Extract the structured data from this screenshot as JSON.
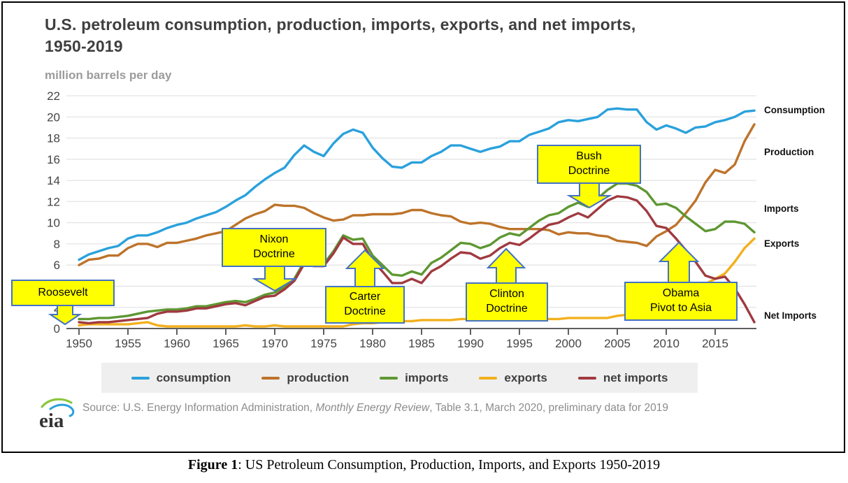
{
  "title": "U.S. petroleum consumption, production, imports, exports, and net imports, 1950-2019",
  "y_axis_unit": "million barrels per day",
  "right_labels": [
    "Consumption",
    "Production",
    "Imports",
    "Exports",
    "Net Imports"
  ],
  "callouts": [
    {
      "name": "roosevelt",
      "line1": "Roosevelt",
      "line2": ""
    },
    {
      "name": "nixon",
      "line1": "Nixon",
      "line2": "Doctrine"
    },
    {
      "name": "carter",
      "line1": "Carter",
      "line2": "Doctrine"
    },
    {
      "name": "clinton",
      "line1": "Clinton",
      "line2": "Doctrine"
    },
    {
      "name": "bush",
      "line1": "Bush",
      "line2": "Doctrine"
    },
    {
      "name": "obama",
      "line1": "Obama",
      "line2": "Pivot to Asia"
    }
  ],
  "legend": [
    {
      "label": "consumption"
    },
    {
      "label": "production"
    },
    {
      "label": "imports"
    },
    {
      "label": "exports"
    },
    {
      "label": "net imports"
    }
  ],
  "logo_text": "eia",
  "source": {
    "prefix": "Source: U.S. Energy Information Administration, ",
    "italic": "Monthly Energy Review",
    "suffix": ", Table 3.1, March 2020, preliminary data for 2019"
  },
  "caption": {
    "label": "Figure 1",
    "text": ": US Petroleum Consumption, Production, Imports, and Exports 1950-2019"
  },
  "chart_data": {
    "type": "line",
    "title": "U.S. petroleum consumption, production, imports, exports, and net imports, 1950-2019",
    "xlabel": "",
    "ylabel": "million barrels per day",
    "ylim": [
      0,
      22
    ],
    "grid": true,
    "legend_position": "bottom",
    "y_ticks": [
      0,
      2,
      4,
      6,
      8,
      10,
      12,
      14,
      16,
      18,
      20,
      22
    ],
    "x_ticks": [
      1950,
      1955,
      1960,
      1965,
      1970,
      1975,
      1980,
      1985,
      1990,
      1995,
      2000,
      2005,
      2010,
      2015
    ],
    "x": [
      1950,
      1951,
      1952,
      1953,
      1954,
      1955,
      1956,
      1957,
      1958,
      1959,
      1960,
      1961,
      1962,
      1963,
      1964,
      1965,
      1966,
      1967,
      1968,
      1969,
      1970,
      1971,
      1972,
      1973,
      1974,
      1975,
      1976,
      1977,
      1978,
      1979,
      1980,
      1981,
      1982,
      1983,
      1984,
      1985,
      1986,
      1987,
      1988,
      1989,
      1990,
      1991,
      1992,
      1993,
      1994,
      1995,
      1996,
      1997,
      1998,
      1999,
      2000,
      2001,
      2002,
      2003,
      2004,
      2005,
      2006,
      2007,
      2008,
      2009,
      2010,
      2011,
      2012,
      2013,
      2014,
      2015,
      2016,
      2017,
      2018,
      2019
    ],
    "series": [
      {
        "name": "consumption",
        "color": "#2aa1dc",
        "values": [
          6.5,
          7.0,
          7.3,
          7.6,
          7.8,
          8.5,
          8.8,
          8.8,
          9.1,
          9.5,
          9.8,
          10.0,
          10.4,
          10.7,
          11.0,
          11.5,
          12.1,
          12.6,
          13.4,
          14.1,
          14.7,
          15.2,
          16.4,
          17.3,
          16.7,
          16.3,
          17.5,
          18.4,
          18.8,
          18.5,
          17.1,
          16.1,
          15.3,
          15.2,
          15.7,
          15.7,
          16.3,
          16.7,
          17.3,
          17.3,
          17.0,
          16.7,
          17.0,
          17.2,
          17.7,
          17.7,
          18.3,
          18.6,
          18.9,
          19.5,
          19.7,
          19.6,
          19.8,
          20.0,
          20.7,
          20.8,
          20.7,
          20.7,
          19.5,
          18.8,
          19.2,
          18.9,
          18.5,
          19.0,
          19.1,
          19.5,
          19.7,
          20.0,
          20.5,
          20.6
        ]
      },
      {
        "name": "production",
        "color": "#bd732a",
        "values": [
          6.0,
          6.5,
          6.6,
          6.9,
          6.9,
          7.6,
          8.0,
          8.0,
          7.7,
          8.1,
          8.1,
          8.3,
          8.5,
          8.8,
          9.0,
          9.2,
          9.8,
          10.4,
          10.8,
          11.1,
          11.7,
          11.6,
          11.6,
          11.4,
          10.9,
          10.5,
          10.2,
          10.3,
          10.7,
          10.7,
          10.8,
          10.8,
          10.8,
          10.9,
          11.2,
          11.2,
          10.9,
          10.7,
          10.6,
          10.1,
          9.9,
          10.0,
          9.9,
          9.6,
          9.4,
          9.4,
          9.4,
          9.4,
          9.3,
          8.9,
          9.1,
          9.0,
          9.0,
          8.8,
          8.7,
          8.3,
          8.2,
          8.1,
          7.8,
          8.7,
          9.2,
          9.8,
          10.9,
          12.1,
          13.8,
          15.0,
          14.7,
          15.5,
          17.7,
          19.3
        ]
      },
      {
        "name": "imports",
        "color": "#5d9732",
        "values": [
          0.9,
          0.9,
          1.0,
          1.0,
          1.1,
          1.2,
          1.4,
          1.6,
          1.7,
          1.8,
          1.8,
          1.9,
          2.1,
          2.1,
          2.3,
          2.5,
          2.6,
          2.5,
          2.8,
          3.2,
          3.4,
          3.9,
          4.7,
          6.3,
          6.1,
          6.1,
          7.3,
          8.8,
          8.4,
          8.5,
          6.9,
          6.0,
          5.1,
          5.0,
          5.4,
          5.1,
          6.2,
          6.7,
          7.4,
          8.1,
          8.0,
          7.6,
          7.9,
          8.6,
          9.0,
          8.8,
          9.5,
          10.2,
          10.7,
          10.9,
          11.5,
          11.9,
          11.5,
          12.3,
          13.1,
          13.7,
          13.7,
          13.5,
          12.9,
          11.7,
          11.8,
          11.4,
          10.6,
          9.9,
          9.2,
          9.4,
          10.1,
          10.1,
          9.9,
          9.1
        ]
      },
      {
        "name": "exports",
        "color": "#f2b01e",
        "values": [
          0.3,
          0.4,
          0.4,
          0.4,
          0.4,
          0.4,
          0.5,
          0.6,
          0.3,
          0.2,
          0.2,
          0.2,
          0.2,
          0.2,
          0.2,
          0.2,
          0.2,
          0.3,
          0.2,
          0.2,
          0.3,
          0.2,
          0.2,
          0.2,
          0.2,
          0.2,
          0.2,
          0.2,
          0.4,
          0.5,
          0.5,
          0.6,
          0.8,
          0.7,
          0.7,
          0.8,
          0.8,
          0.8,
          0.8,
          0.9,
          0.9,
          1.0,
          1.0,
          1.0,
          0.9,
          0.9,
          1.0,
          1.0,
          0.9,
          0.9,
          1.0,
          1.0,
          1.0,
          1.0,
          1.0,
          1.2,
          1.3,
          1.4,
          1.8,
          2.0,
          2.3,
          2.9,
          3.2,
          3.6,
          4.2,
          4.7,
          5.2,
          6.3,
          7.6,
          8.5
        ]
      },
      {
        "name": "net imports",
        "color": "#a03a40",
        "values": [
          0.6,
          0.5,
          0.6,
          0.6,
          0.7,
          0.8,
          0.9,
          1.0,
          1.4,
          1.6,
          1.6,
          1.7,
          1.9,
          1.9,
          2.1,
          2.3,
          2.4,
          2.2,
          2.6,
          3.0,
          3.1,
          3.7,
          4.5,
          6.1,
          5.9,
          5.9,
          7.1,
          8.6,
          8.0,
          8.0,
          6.4,
          5.4,
          4.3,
          4.3,
          4.7,
          4.3,
          5.4,
          5.9,
          6.6,
          7.2,
          7.1,
          6.6,
          6.9,
          7.6,
          8.1,
          7.9,
          8.5,
          9.2,
          9.8,
          10.0,
          10.5,
          10.9,
          10.5,
          11.3,
          12.1,
          12.5,
          12.4,
          12.1,
          11.1,
          9.7,
          9.5,
          8.5,
          7.4,
          6.3,
          5.0,
          4.7,
          4.9,
          3.8,
          2.3,
          0.6
        ]
      }
    ],
    "annotations": [
      "Roosevelt",
      "Nixon Doctrine",
      "Carter Doctrine",
      "Clinton Doctrine",
      "Bush Doctrine",
      "Obama Pivot to Asia"
    ]
  }
}
